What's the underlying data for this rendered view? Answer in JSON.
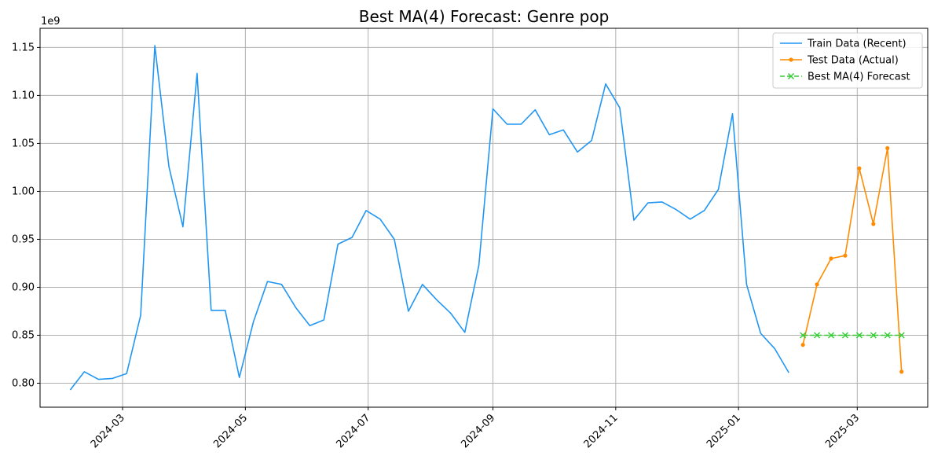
{
  "chart_data": {
    "type": "line",
    "title": "Best MA(4) Forecast: Genre pop",
    "xlabel": "",
    "ylabel": "",
    "y_scale_label": "1e9",
    "grid": true,
    "legend_position": "top-right",
    "x_range": [
      "2024-01-20",
      "2025-04-05"
    ],
    "ylim": [
      0.775,
      1.17
    ],
    "x_ticks": [
      "2024-03",
      "2024-05",
      "2024-07",
      "2024-09",
      "2024-11",
      "2025-01",
      "2025-03"
    ],
    "x_tick_dates": [
      "2024-03-01",
      "2024-05-01",
      "2024-07-01",
      "2024-09-01",
      "2024-11-01",
      "2025-01-01",
      "2025-03-01"
    ],
    "y_ticks": [
      0.8,
      0.85,
      0.9,
      0.95,
      1.0,
      1.05,
      1.1,
      1.15
    ],
    "y_tick_labels": [
      "0.80",
      "0.85",
      "0.90",
      "0.95",
      "1.00",
      "1.05",
      "1.10",
      "1.15"
    ],
    "series": [
      {
        "name": "Train Data (Recent)",
        "color": "#2196f3",
        "marker": "none",
        "linestyle": "solid",
        "x": [
          "2024-02-04",
          "2024-02-11",
          "2024-02-18",
          "2024-02-25",
          "2024-03-03",
          "2024-03-10",
          "2024-03-17",
          "2024-03-24",
          "2024-03-31",
          "2024-04-07",
          "2024-04-14",
          "2024-04-21",
          "2024-04-28",
          "2024-05-05",
          "2024-05-12",
          "2024-05-19",
          "2024-05-26",
          "2024-06-02",
          "2024-06-09",
          "2024-06-16",
          "2024-06-23",
          "2024-06-30",
          "2024-07-07",
          "2024-07-14",
          "2024-07-21",
          "2024-07-28",
          "2024-08-04",
          "2024-08-11",
          "2024-08-18",
          "2024-08-25",
          "2024-09-01",
          "2024-09-08",
          "2024-09-15",
          "2024-09-22",
          "2024-09-29",
          "2024-10-06",
          "2024-10-13",
          "2024-10-20",
          "2024-10-27",
          "2024-11-03",
          "2024-11-10",
          "2024-11-17",
          "2024-11-24",
          "2024-12-01",
          "2024-12-08",
          "2024-12-15",
          "2024-12-22",
          "2024-12-29",
          "2025-01-05",
          "2025-01-12",
          "2025-01-19",
          "2025-01-26"
        ],
        "values": [
          0.793,
          0.812,
          0.804,
          0.805,
          0.81,
          0.871,
          1.152,
          1.026,
          0.963,
          1.123,
          0.876,
          0.876,
          0.806,
          0.864,
          0.906,
          0.903,
          0.879,
          0.86,
          0.866,
          0.945,
          0.952,
          0.98,
          0.971,
          0.95,
          0.875,
          0.903,
          0.887,
          0.873,
          0.853,
          0.923,
          1.086,
          1.07,
          1.07,
          1.085,
          1.059,
          1.064,
          1.041,
          1.053,
          1.112,
          1.087,
          0.97,
          0.988,
          0.989,
          0.981,
          0.971,
          0.98,
          1.002,
          1.081,
          0.903,
          0.852,
          0.836,
          0.811
        ]
      },
      {
        "name": "Test Data (Actual)",
        "color": "#ff8c00",
        "marker": "dot",
        "linestyle": "solid",
        "x": [
          "2025-02-02",
          "2025-02-09",
          "2025-02-16",
          "2025-02-23",
          "2025-03-02",
          "2025-03-09",
          "2025-03-16",
          "2025-03-23"
        ],
        "values": [
          0.84,
          0.903,
          0.93,
          0.933,
          1.024,
          0.966,
          1.045,
          0.812
        ]
      },
      {
        "name": "Best MA(4) Forecast",
        "color": "#33cc33",
        "marker": "x",
        "linestyle": "dashed",
        "x": [
          "2025-02-02",
          "2025-02-09",
          "2025-02-16",
          "2025-02-23",
          "2025-03-02",
          "2025-03-09",
          "2025-03-16",
          "2025-03-23"
        ],
        "values": [
          0.85,
          0.85,
          0.85,
          0.85,
          0.85,
          0.85,
          0.85,
          0.85
        ]
      }
    ]
  }
}
